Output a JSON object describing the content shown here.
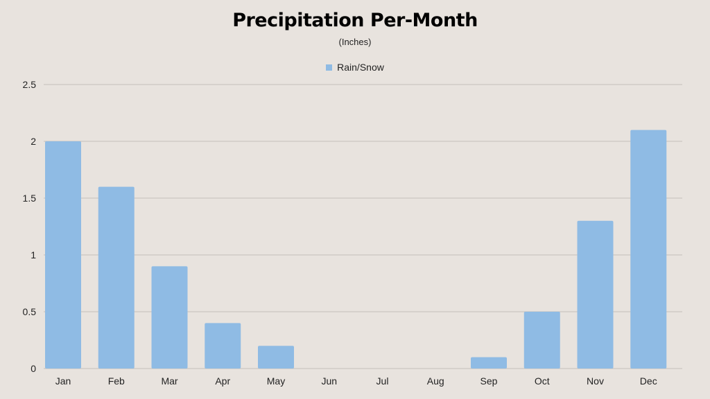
{
  "chart_data": {
    "type": "bar",
    "title": "Precipitation Per-Month",
    "subtitle": "(Inches)",
    "xlabel": "",
    "ylabel": "",
    "categories": [
      "Jan",
      "Feb",
      "Mar",
      "Apr",
      "May",
      "Jun",
      "Jul",
      "Aug",
      "Sep",
      "Oct",
      "Nov",
      "Dec"
    ],
    "series": [
      {
        "name": "Rain/Snow",
        "values": [
          2.0,
          1.6,
          0.9,
          0.4,
          0.2,
          0,
          0,
          0,
          0.1,
          0.5,
          1.3,
          2.1
        ]
      }
    ],
    "ylim": [
      0,
      2.5
    ],
    "yticks": [
      "0",
      "0.5",
      "1",
      "1.5",
      "2",
      "2.5"
    ],
    "grid": true,
    "legend_position": "top-center",
    "colors": {
      "bar": "#8fbbe4",
      "grid": "#c4bfba",
      "background": "#e8e3de"
    }
  }
}
